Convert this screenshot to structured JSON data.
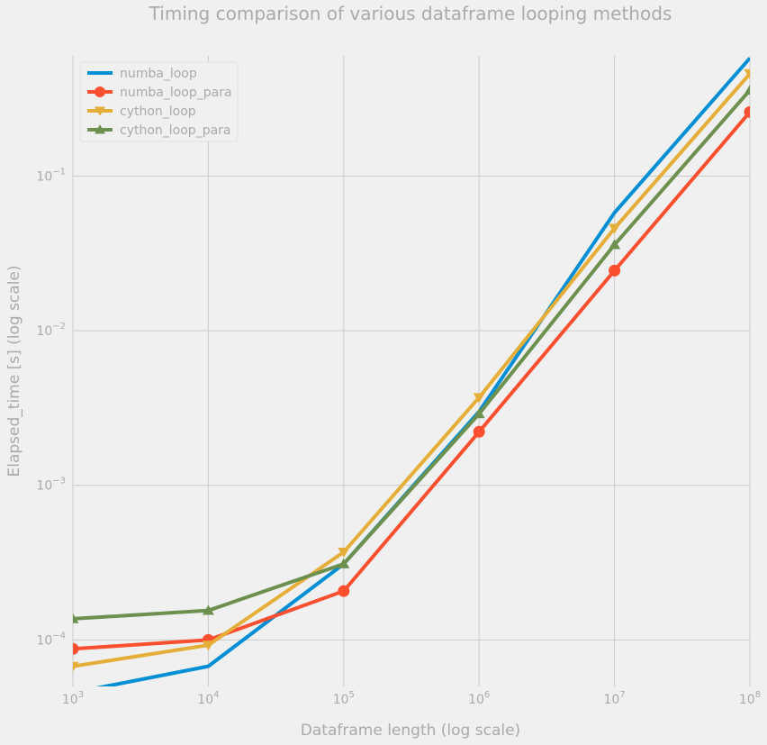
{
  "chart_data": {
    "type": "line",
    "title": "Timing comparison of various dataframe looping methods",
    "xlabel": "Dataframe length (log scale)",
    "ylabel": "Elapsed_time [s] (log scale)",
    "xscale": "log",
    "yscale": "log",
    "x": [
      1000,
      10000,
      100000,
      1000000,
      10000000,
      100000000
    ],
    "xlim": [
      1000,
      100000000
    ],
    "ylim": [
      5e-05,
      0.6
    ],
    "x_ticks": [
      {
        "base": "10",
        "exp": "3"
      },
      {
        "base": "10",
        "exp": "4"
      },
      {
        "base": "10",
        "exp": "5"
      },
      {
        "base": "10",
        "exp": "6"
      },
      {
        "base": "10",
        "exp": "7"
      },
      {
        "base": "10",
        "exp": "8"
      }
    ],
    "y_ticks": [
      {
        "base": "10",
        "exp": "−4",
        "value": 0.0001
      },
      {
        "base": "10",
        "exp": "−3",
        "value": 0.001
      },
      {
        "base": "10",
        "exp": "−2",
        "value": 0.01
      },
      {
        "base": "10",
        "exp": "−1",
        "value": 0.1
      }
    ],
    "grid": true,
    "legend_position": "top-left",
    "series": [
      {
        "name": "numba_loop",
        "color": "#008fd5",
        "marker": "none",
        "values": [
          4.55e-05,
          6.75e-05,
          0.00031,
          0.003,
          0.058,
          0.58
        ]
      },
      {
        "name": "numba_loop_para",
        "color": "#fc4f30",
        "marker": "circle",
        "values": [
          8.75e-05,
          0.0001,
          0.000207,
          0.00222,
          0.0245,
          0.26
        ]
      },
      {
        "name": "cython_loop",
        "color": "#e5ae38",
        "marker": "triangle-down",
        "values": [
          6.75e-05,
          9.25e-05,
          0.00037,
          0.0037,
          0.046,
          0.46
        ]
      },
      {
        "name": "cython_loop_para",
        "color": "#6d904f",
        "marker": "triangle-up",
        "values": [
          0.000137,
          0.000155,
          0.00031,
          0.0029,
          0.036,
          0.36
        ]
      }
    ]
  }
}
